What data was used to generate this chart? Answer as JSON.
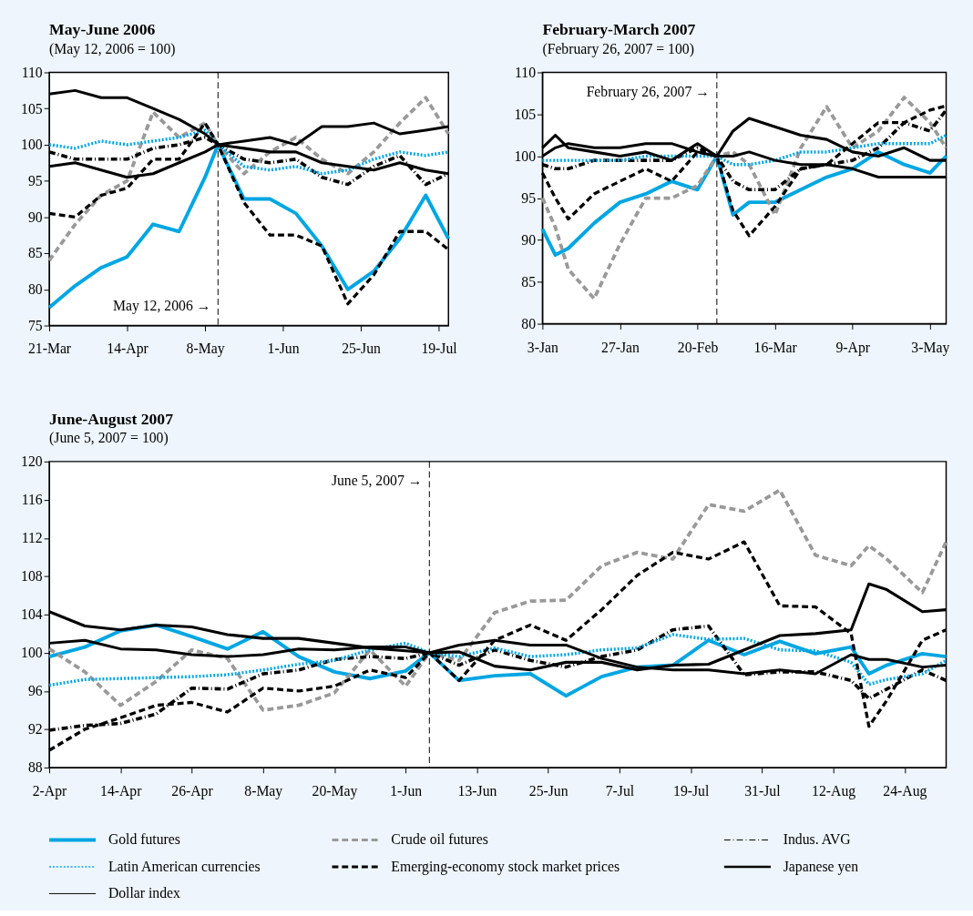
{
  "chart_data": [
    {
      "type": "line",
      "title": "May-June 2006",
      "subtitle": "(May 12, 2006 = 100)",
      "grid": false,
      "legend": false,
      "x": [
        "2006-03-21",
        "2006-03-29",
        "2006-04-06",
        "2006-04-14",
        "2006-04-22",
        "2006-04-30",
        "2006-05-08",
        "2006-05-12",
        "2006-05-20",
        "2006-05-28",
        "2006-06-05",
        "2006-06-13",
        "2006-06-21",
        "2006-06-29",
        "2006-07-07",
        "2006-07-15",
        "2006-07-22"
      ],
      "xlim": [
        "2006-03-21",
        "2006-07-22"
      ],
      "xticks": [
        {
          "value": "2006-03-21",
          "label": "21-Mar"
        },
        {
          "value": "2006-04-14",
          "label": "14-Apr"
        },
        {
          "value": "2006-05-08",
          "label": "8-May"
        },
        {
          "value": "2006-06-01",
          "label": "1-Jun"
        },
        {
          "value": "2006-06-25",
          "label": "25-Jun"
        },
        {
          "value": "2006-07-19",
          "label": "19-Jul"
        }
      ],
      "ylim": [
        75,
        110
      ],
      "yticks": [
        75,
        80,
        85,
        90,
        95,
        100,
        105,
        110
      ],
      "ref_lines": [
        {
          "axis": "x",
          "value": "2006-05-12",
          "label": "May 12, 2006 →",
          "line_style": "dashed"
        }
      ],
      "series": [
        {
          "color": "#00a6e2",
          "line_style": "solid",
          "values": [
            77.5,
            80.5,
            83,
            84.5,
            89,
            88,
            95.5,
            100,
            92.5,
            92.5,
            90.5,
            86,
            80,
            82.5,
            87,
            93,
            87
          ]
        },
        {
          "color": "#999999",
          "line_style": "dashed",
          "values": [
            84,
            89,
            93,
            95,
            104.5,
            101,
            103,
            100,
            96,
            99,
            101,
            98,
            96,
            99,
            103,
            106.5,
            101.5
          ]
        },
        {
          "color": "#000000",
          "line_style": "dashdot",
          "values": [
            99,
            98,
            98,
            98,
            99.5,
            100,
            101,
            100,
            98,
            97.5,
            98,
            95.5,
            94.5,
            97,
            98.5,
            94.5,
            96
          ]
        },
        {
          "color": "#00a6e2",
          "line_style": "dotted",
          "values": [
            100,
            99.5,
            100.5,
            100,
            100.5,
            101,
            102,
            100,
            97,
            96.5,
            97,
            96,
            96.5,
            98,
            99,
            98.5,
            99
          ]
        },
        {
          "color": "#000000",
          "line_style": "dashed",
          "values": [
            90.5,
            90,
            93,
            94,
            98,
            98,
            103,
            100,
            92,
            87.5,
            87.5,
            86,
            78,
            82,
            88,
            88,
            85.5
          ]
        },
        {
          "color": "#000000",
          "line_style": "solid",
          "values": [
            97,
            97.5,
            96.5,
            95.5,
            96,
            97.5,
            99,
            100,
            99.5,
            99,
            99,
            97.5,
            97,
            96.5,
            97.5,
            96.5,
            96
          ]
        },
        {
          "color": "#000000",
          "line_style": "solid",
          "values": [
            107,
            107.5,
            106.5,
            106.5,
            105,
            103.5,
            101.5,
            100,
            100.5,
            101,
            100,
            102.5,
            102.5,
            103,
            101.5,
            102,
            102.5
          ]
        }
      ]
    },
    {
      "type": "line",
      "title": "February-March 2007",
      "subtitle": "(February 26, 2007 = 100)",
      "grid": false,
      "legend": false,
      "x": [
        "2007-01-03",
        "2007-01-07",
        "2007-01-11",
        "2007-01-19",
        "2007-01-27",
        "2007-02-04",
        "2007-02-12",
        "2007-02-20",
        "2007-02-26",
        "2007-03-03",
        "2007-03-08",
        "2007-03-16",
        "2007-03-24",
        "2007-04-01",
        "2007-04-09",
        "2007-04-17",
        "2007-04-25",
        "2007-05-03",
        "2007-05-08"
      ],
      "xlim": [
        "2007-01-03",
        "2007-05-08"
      ],
      "xticks": [
        {
          "value": "2007-01-03",
          "label": "3-Jan"
        },
        {
          "value": "2007-01-27",
          "label": "27-Jan"
        },
        {
          "value": "2007-02-20",
          "label": "20-Feb"
        },
        {
          "value": "2007-03-16",
          "label": "16-Mar"
        },
        {
          "value": "2007-04-09",
          "label": "9-Apr"
        },
        {
          "value": "2007-05-03",
          "label": "3-May"
        }
      ],
      "ylim": [
        80,
        110
      ],
      "yticks": [
        80,
        85,
        90,
        95,
        100,
        105,
        110
      ],
      "ref_lines": [
        {
          "axis": "x",
          "value": "2007-02-26",
          "label": "February 26, 2007 →",
          "line_style": "dashed"
        }
      ],
      "series": [
        {
          "color": "#00a6e2",
          "line_style": "solid",
          "values": [
            91.3,
            88.2,
            89,
            92,
            94.5,
            95.5,
            97,
            96,
            100,
            93,
            94.5,
            94.5,
            96,
            97.5,
            98.5,
            100.5,
            99,
            98,
            100
          ]
        },
        {
          "color": "#999999",
          "line_style": "dashed",
          "values": [
            95,
            91.5,
            86.5,
            83,
            89.5,
            95,
            95,
            96.5,
            100,
            100.5,
            99,
            93,
            101,
            105.9,
            101,
            103,
            107,
            104,
            101
          ]
        },
        {
          "color": "#000000",
          "line_style": "dashdot",
          "values": [
            99,
            98.5,
            98.5,
            99.5,
            99.5,
            99.5,
            99.5,
            101,
            100,
            97,
            96,
            96,
            98.5,
            99,
            99.5,
            101,
            104,
            103,
            105.5
          ]
        },
        {
          "color": "#00a6e2",
          "line_style": "dotted",
          "values": [
            99.5,
            99.5,
            99.5,
            99.5,
            99.5,
            100,
            100,
            100,
            100,
            99,
            99,
            99.5,
            100.5,
            100.5,
            101,
            101.5,
            101.5,
            101.5,
            102.5
          ]
        },
        {
          "color": "#000000",
          "line_style": "dashed",
          "values": [
            98,
            95,
            92.5,
            95.5,
            97,
            98.5,
            97,
            100.5,
            100,
            93.5,
            90.5,
            94,
            98.5,
            99,
            101.5,
            104,
            104,
            105.5,
            106
          ]
        },
        {
          "color": "#000000",
          "line_style": "solid",
          "values": [
            101,
            102.5,
            101,
            100.5,
            100,
            100.5,
            99.5,
            101.5,
            100,
            103,
            104.5,
            103.5,
            102.5,
            102,
            100.5,
            100,
            101,
            99.5,
            99.5
          ]
        },
        {
          "color": "#000000",
          "line_style": "solid",
          "values": [
            100,
            101,
            101.5,
            101,
            101,
            101.5,
            101.5,
            100.5,
            100,
            100,
            100.5,
            99.5,
            99,
            99,
            98.5,
            97.5,
            97.5,
            97.5,
            97.5
          ]
        }
      ]
    },
    {
      "type": "line",
      "title": "June-August 2007",
      "subtitle": "(June 5, 2007 = 100)",
      "grid": false,
      "legend": "bottom",
      "x": [
        "2007-04-02",
        "2007-04-08",
        "2007-04-14",
        "2007-04-20",
        "2007-04-26",
        "2007-05-02",
        "2007-05-08",
        "2007-05-14",
        "2007-05-20",
        "2007-05-26",
        "2007-06-01",
        "2007-06-05",
        "2007-06-10",
        "2007-06-16",
        "2007-06-22",
        "2007-06-28",
        "2007-07-04",
        "2007-07-10",
        "2007-07-16",
        "2007-07-22",
        "2007-07-28",
        "2007-08-03",
        "2007-08-09",
        "2007-08-15",
        "2007-08-18",
        "2007-08-21",
        "2007-08-27",
        "2007-08-31"
      ],
      "xlim": [
        "2007-04-02",
        "2007-08-31"
      ],
      "xticks": [
        {
          "value": "2007-04-02",
          "label": "2-Apr"
        },
        {
          "value": "2007-04-14",
          "label": "14-Apr"
        },
        {
          "value": "2007-04-26",
          "label": "26-Apr"
        },
        {
          "value": "2007-05-08",
          "label": "8-May"
        },
        {
          "value": "2007-05-20",
          "label": "20-May"
        },
        {
          "value": "2007-06-01",
          "label": "1-Jun"
        },
        {
          "value": "2007-06-13",
          "label": "13-Jun"
        },
        {
          "value": "2007-06-25",
          "label": "25-Jun"
        },
        {
          "value": "2007-07-07",
          "label": "7-Jul"
        },
        {
          "value": "2007-07-19",
          "label": "19-Jul"
        },
        {
          "value": "2007-07-31",
          "label": "31-Jul"
        },
        {
          "value": "2007-08-12",
          "label": "12-Aug"
        },
        {
          "value": "2007-08-24",
          "label": "24-Aug"
        }
      ],
      "ylim": [
        88,
        120
      ],
      "yticks": [
        88,
        92,
        96,
        100,
        104,
        108,
        112,
        116,
        120
      ],
      "ref_lines": [
        {
          "axis": "x",
          "value": "2007-06-05",
          "label": "June 5, 2007 →",
          "line_style": "dashed"
        }
      ],
      "series": [
        {
          "name": "Gold futures",
          "color": "#00a6e2",
          "line_style": "solid",
          "values": [
            99.6,
            100.6,
            102.3,
            102.9,
            101.7,
            100.4,
            102.2,
            99.6,
            98,
            97.3,
            98.1,
            100,
            97.1,
            97.6,
            97.8,
            95.5,
            97.5,
            98.5,
            98.7,
            101.3,
            99.8,
            101.2,
            99.9,
            100.6,
            97.8,
            98.7,
            99.9,
            99.6
          ]
        },
        {
          "name": "Crude oil futures",
          "color": "#999999",
          "line_style": "dashed",
          "values": [
            100.4,
            98,
            94.5,
            97,
            100.3,
            99.4,
            94,
            94.5,
            95.8,
            100.3,
            96.5,
            100,
            99.2,
            104.2,
            105.4,
            105.5,
            109.1,
            110.5,
            109.8,
            115.5,
            114.8,
            117,
            110.2,
            109.1,
            111.2,
            109.8,
            106.3,
            111.6
          ]
        },
        {
          "name": "Indus. AVG",
          "color": "#000000",
          "line_style": "dashdot",
          "values": [
            91.9,
            92.4,
            92.6,
            93.6,
            96.3,
            96.2,
            97.8,
            98.2,
            99.3,
            99.6,
            99.4,
            100,
            98.7,
            100.3,
            99.2,
            98.5,
            99.6,
            100.3,
            102.4,
            102.8,
            97.7,
            98,
            98,
            97.1,
            95.2,
            96.2,
            98.2,
            97.1
          ]
        },
        {
          "name": "Latin American currencies",
          "color": "#00a6e2",
          "line_style": "dotted",
          "values": [
            96.6,
            97.2,
            97.3,
            97.4,
            97.5,
            97.7,
            98.2,
            98.8,
            99.2,
            100.3,
            101,
            100,
            99.6,
            100.5,
            99.6,
            99.8,
            100.3,
            100.5,
            101.9,
            101.4,
            101.5,
            100.3,
            100.2,
            99,
            96.7,
            97.2,
            97.8,
            99.2
          ]
        },
        {
          "name": "Emerging-economy stock market prices",
          "color": "#000000",
          "line_style": "dashed",
          "values": [
            89.8,
            92,
            93.2,
            94.5,
            94.8,
            93.8,
            96.3,
            96,
            96.5,
            98.2,
            97.4,
            100,
            97.1,
            101.3,
            102.9,
            101.3,
            104.5,
            108.1,
            110.5,
            109.8,
            111.6,
            104.9,
            104.8,
            102,
            92.3,
            95,
            101.3,
            102.4
          ]
        },
        {
          "name": "Japanese yen",
          "color": "#000000",
          "line_style": "solid",
          "values": [
            104.3,
            102.8,
            102.4,
            102.9,
            102.7,
            101.9,
            101.5,
            101.5,
            101,
            100.5,
            100.2,
            100,
            100.1,
            98.6,
            98.2,
            99,
            99,
            98.2,
            98.7,
            98.8,
            100.3,
            101.8,
            102,
            102.4,
            107.2,
            106.6,
            104.3,
            104.5
          ]
        },
        {
          "name": "Dollar index",
          "color": "#000000",
          "line_style": "solid",
          "values": [
            101,
            101.3,
            100.4,
            100.3,
            99.8,
            99.6,
            99.8,
            100.4,
            100.3,
            100.6,
            100.6,
            100,
            100.8,
            101.3,
            100.8,
            100.8,
            99.4,
            98.5,
            98.2,
            98.2,
            97.8,
            98.2,
            97.8,
            99.8,
            99.3,
            99.3,
            98.5,
            98.7
          ]
        }
      ]
    }
  ]
}
